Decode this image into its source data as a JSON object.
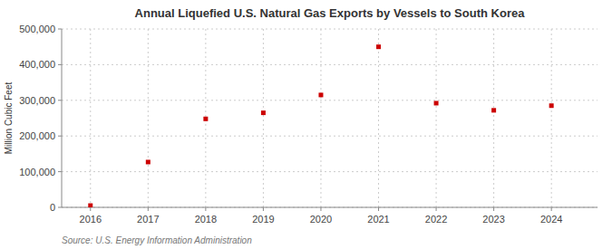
{
  "chart_data": {
    "type": "scatter",
    "title": "Annual Liquefied U.S. Natural Gas Exports by Vessels to South Korea",
    "ylabel": "Million Cubic Feet",
    "source": "Source: U.S. Energy Information Administration",
    "x": [
      2016,
      2017,
      2018,
      2019,
      2020,
      2021,
      2022,
      2023,
      2024
    ],
    "values": [
      5000,
      127000,
      248000,
      265000,
      315000,
      450000,
      292000,
      272000,
      285000
    ],
    "color": "#cc0000",
    "marker": "square",
    "xlim": [
      2015.5,
      2024.8
    ],
    "xticks": [
      2016,
      2017,
      2018,
      2019,
      2020,
      2021,
      2022,
      2023,
      2024
    ],
    "ylim": [
      0,
      500000
    ],
    "yticks": [
      0,
      {
        "value": 100000,
        "label": "100,000"
      },
      {
        "value": 200000,
        "label": "200,000"
      },
      {
        "value": 300000,
        "label": "300,000"
      },
      {
        "value": 400000,
        "label": "400,000"
      },
      {
        "value": 500000,
        "label": "500,000"
      }
    ],
    "grid": true
  }
}
